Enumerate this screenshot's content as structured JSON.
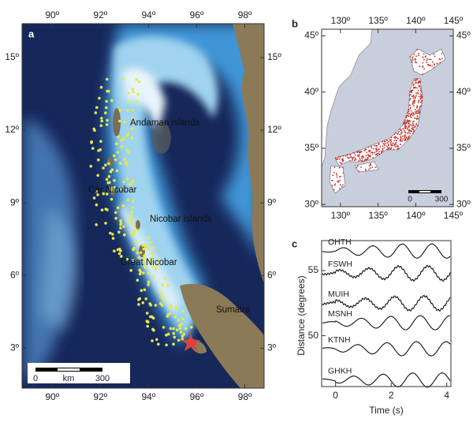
{
  "panel_a": {
    "label": "a",
    "xlim": [
      88.75,
      98.8
    ],
    "ylim": [
      1.35,
      16.4
    ],
    "xticks": [
      {
        "value": 90,
        "label": "90º"
      },
      {
        "value": 92,
        "label": "92º"
      },
      {
        "value": 94,
        "label": "94º"
      },
      {
        "value": 96,
        "label": "96º"
      },
      {
        "value": 98,
        "label": "98º"
      }
    ],
    "yticks": [
      {
        "value": 3,
        "label": "3º"
      },
      {
        "value": 6,
        "label": "6º"
      },
      {
        "value": 9,
        "label": "9º"
      },
      {
        "value": 12,
        "label": "12º"
      },
      {
        "value": 15,
        "label": "15º"
      }
    ],
    "places": [
      "Andaman islands",
      "Car Nicobar",
      "Nicobar islands",
      "Great Nicobar",
      "Sumatra"
    ],
    "scale_bar": {
      "start": "0",
      "unit": "km",
      "end": "300"
    }
  },
  "panel_b": {
    "label": "b",
    "xlim": [
      127.5,
      145
    ],
    "ylim": [
      29.8,
      45.6
    ],
    "xticks": [
      {
        "value": 130,
        "label": "130º"
      },
      {
        "value": 135,
        "label": "135º"
      },
      {
        "value": 140,
        "label": "140º"
      },
      {
        "value": 145,
        "label": "145º"
      }
    ],
    "yticks": [
      {
        "value": 30,
        "label": "30º"
      },
      {
        "value": 35,
        "label": "35º"
      },
      {
        "value": 40,
        "label": "40º"
      },
      {
        "value": 45,
        "label": "45º"
      }
    ],
    "scale_bar": {
      "start": "0",
      "end": "300"
    }
  },
  "panel_c": {
    "label": "c",
    "x_label": "Time (s)",
    "y_label": "Distance (degrees)",
    "xlim": [
      -0.5,
      4.15
    ],
    "ylim": [
      46.1,
      57.3
    ],
    "xticks": [
      0,
      2,
      4
    ],
    "yticks": [
      50,
      55
    ],
    "traces": [
      {
        "name": "OHTH",
        "distance": 56.5
      },
      {
        "name": "FSWH",
        "distance": 54.8
      },
      {
        "name": "MUIH",
        "distance": 52.5
      },
      {
        "name": "MSNH",
        "distance": 51
      },
      {
        "name": "KTNH",
        "distance": 49
      },
      {
        "name": "GHKH",
        "distance": 46.6
      }
    ]
  }
}
